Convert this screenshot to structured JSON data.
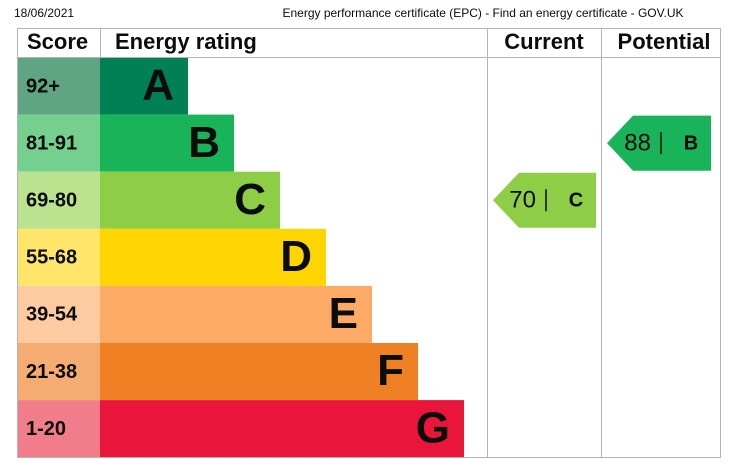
{
  "header": {
    "date": "18/06/2021",
    "page_title": "Energy performance certificate (EPC) - Find an energy certificate - GOV.UK"
  },
  "table": {
    "columns": [
      "Score",
      "Energy rating",
      "Current",
      "Potential"
    ],
    "bands": [
      {
        "score": "92+",
        "rating": "A",
        "color": "#008054",
        "score_color": "#5fa583"
      },
      {
        "score": "81-91",
        "rating": "B",
        "color": "#19b459",
        "score_color": "#75d08f"
      },
      {
        "score": "69-80",
        "rating": "C",
        "color": "#8dce46",
        "score_color": "#bbe28f"
      },
      {
        "score": "55-68",
        "rating": "D",
        "color": "#ffd500",
        "score_color": "#ffe66a"
      },
      {
        "score": "39-54",
        "rating": "E",
        "color": "#fcaa65",
        "score_color": "#fdcaa2"
      },
      {
        "score": "21-38",
        "rating": "F",
        "color": "#ef8023",
        "score_color": "#f4ac72"
      },
      {
        "score": "1-20",
        "rating": "G",
        "color": "#e9153b",
        "score_color": "#f17c8a"
      }
    ],
    "current": {
      "value": 70,
      "rating": "C"
    },
    "potential": {
      "value": 88,
      "rating": "B"
    }
  }
}
